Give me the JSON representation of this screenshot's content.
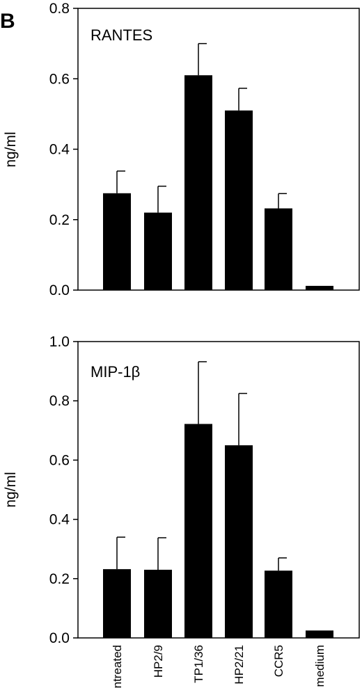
{
  "panel_label": "B",
  "chart_data": [
    {
      "type": "bar",
      "title": "RANTES",
      "ylabel": "ng/ml",
      "ylim": [
        0,
        0.8
      ],
      "yticks": [
        "0.0",
        "0.2",
        "0.4",
        "0.6",
        "0.8"
      ],
      "categories": [
        "untreated",
        "HP2/9",
        "TP1/36",
        "HP2/21",
        "CCR5",
        "medium"
      ],
      "category_labels_shown": false,
      "values": [
        0.275,
        0.22,
        0.61,
        0.51,
        0.232,
        0.012
      ],
      "errors": [
        0.063,
        0.075,
        0.09,
        0.063,
        0.042,
        0
      ]
    },
    {
      "type": "bar",
      "title": "MIP-1β",
      "ylabel": "ng/ml",
      "ylim": [
        0,
        1.0
      ],
      "yticks": [
        "0.0",
        "0.2",
        "0.4",
        "0.6",
        "0.8",
        "1.0"
      ],
      "categories": [
        "untreated",
        "HP2/9",
        "TP1/36",
        "HP2/21",
        "CCR5",
        "medium"
      ],
      "category_labels_shown": true,
      "values": [
        0.232,
        0.23,
        0.722,
        0.65,
        0.227,
        0.025
      ],
      "errors": [
        0.108,
        0.108,
        0.21,
        0.175,
        0.043,
        0
      ]
    }
  ]
}
